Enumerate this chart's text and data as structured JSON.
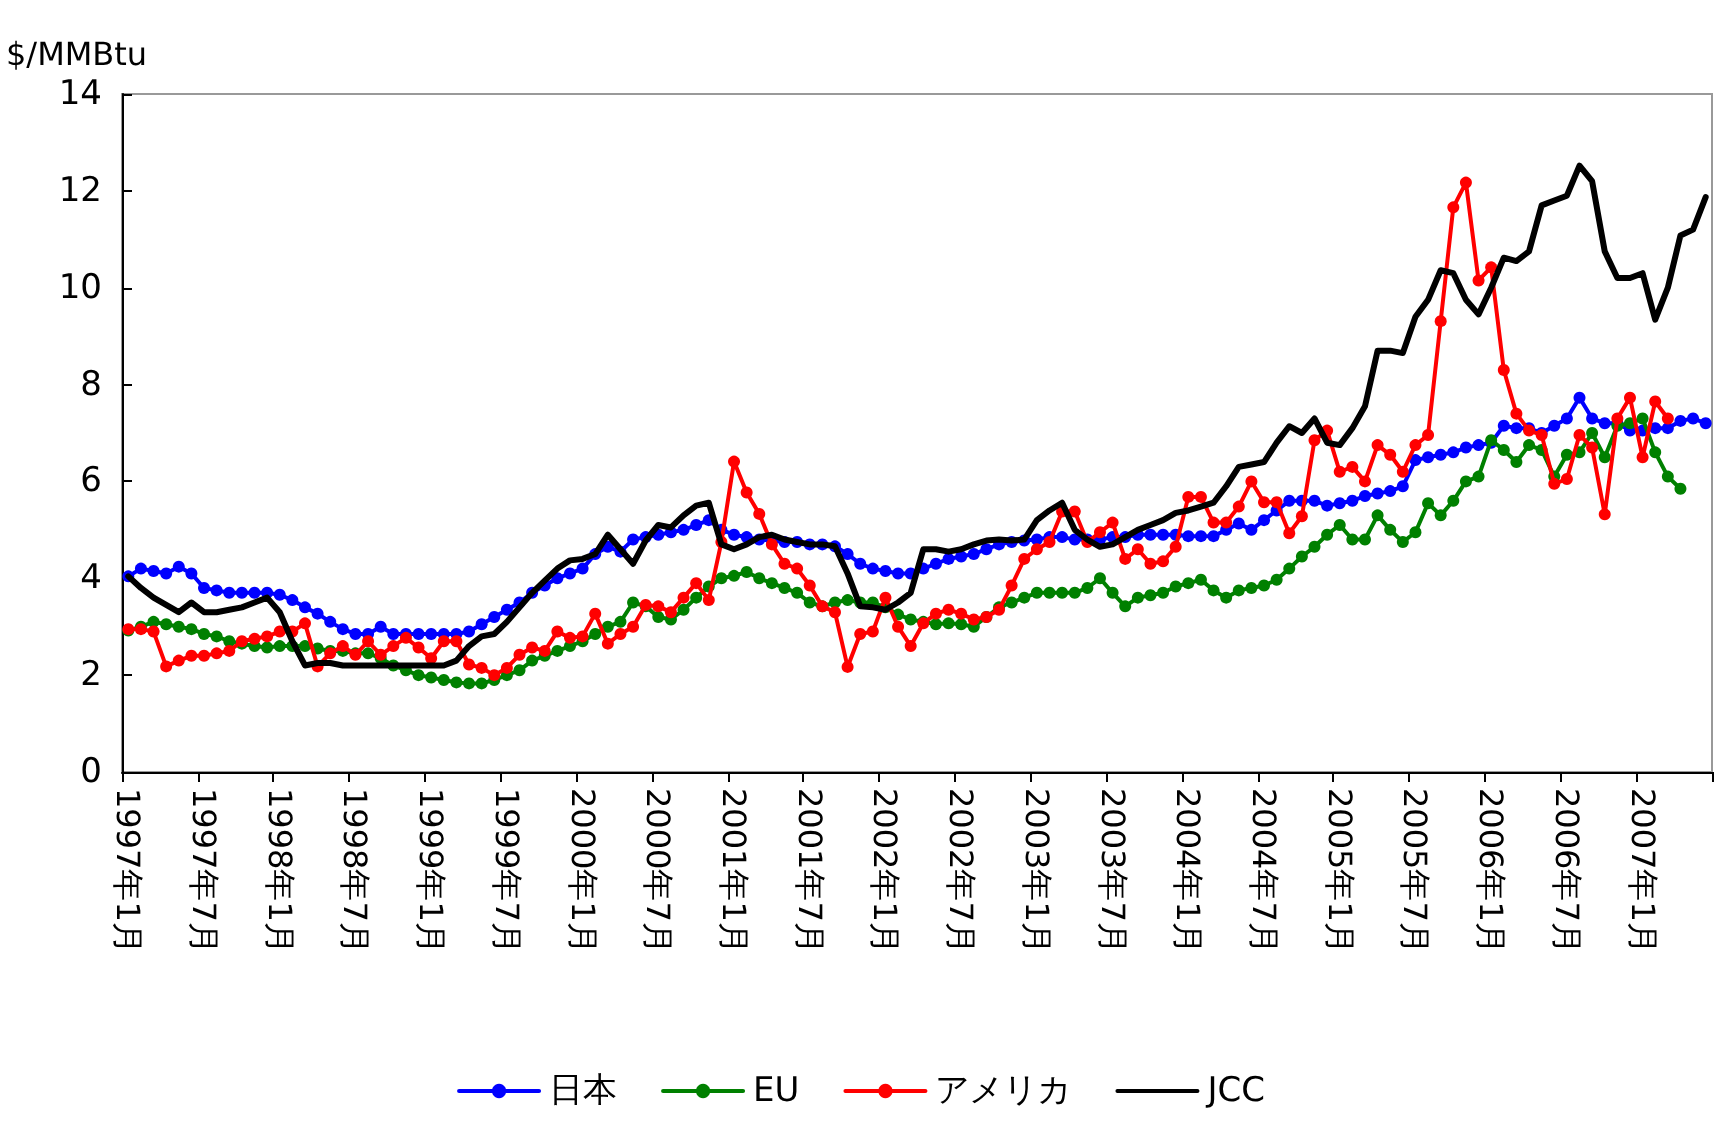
{
  "chart_data": {
    "type": "line",
    "ylabel": "$/MMBtu",
    "ylim": [
      0,
      14
    ],
    "yticks": [
      0,
      2,
      4,
      6,
      8,
      10,
      12,
      14
    ],
    "legend": "bottom",
    "categories": [
      "1997年1月",
      null,
      null,
      null,
      null,
      null,
      "1997年7月",
      null,
      null,
      null,
      null,
      null,
      "1998年1月",
      null,
      null,
      null,
      null,
      null,
      "1998年7月",
      null,
      null,
      null,
      null,
      null,
      "1999年1月",
      null,
      null,
      null,
      null,
      null,
      "1999年7月",
      null,
      null,
      null,
      null,
      null,
      "2000年1月",
      null,
      null,
      null,
      null,
      null,
      "2000年7月",
      null,
      null,
      null,
      null,
      null,
      "2001年1月",
      null,
      null,
      null,
      null,
      null,
      "2001年7月",
      null,
      null,
      null,
      null,
      null,
      "2002年1月",
      null,
      null,
      null,
      null,
      null,
      "2002年7月",
      null,
      null,
      null,
      null,
      null,
      "2003年1月",
      null,
      null,
      null,
      null,
      null,
      "2003年7月",
      null,
      null,
      null,
      null,
      null,
      "2004年1月",
      null,
      null,
      null,
      null,
      null,
      "2004年7月",
      null,
      null,
      null,
      null,
      null,
      "2005年1月",
      null,
      null,
      null,
      null,
      null,
      "2005年7月",
      null,
      null,
      null,
      null,
      null,
      "2006年1月",
      null,
      null,
      null,
      null,
      null,
      "2006年7月",
      null,
      null,
      null,
      null,
      null,
      "2007年1月",
      null,
      null,
      null,
      null,
      null
    ],
    "series": [
      {
        "name": "日本",
        "color": "#0000ff",
        "marker": "circle",
        "values": [
          4.04,
          4.2,
          4.15,
          4.1,
          4.24,
          4.1,
          3.8,
          3.75,
          3.7,
          3.7,
          3.7,
          3.7,
          3.66,
          3.55,
          3.4,
          3.27,
          3.1,
          2.95,
          2.85,
          2.85,
          3.0,
          2.85,
          2.85,
          2.85,
          2.85,
          2.85,
          2.85,
          2.9,
          3.05,
          3.2,
          3.35,
          3.5,
          3.7,
          3.85,
          4.0,
          4.1,
          4.2,
          4.5,
          4.65,
          4.55,
          4.8,
          4.85,
          4.9,
          4.95,
          5.0,
          5.1,
          5.2,
          5.0,
          4.9,
          4.85,
          4.8,
          4.78,
          4.75,
          4.75,
          4.7,
          4.7,
          4.66,
          4.5,
          4.3,
          4.2,
          4.15,
          4.1,
          4.1,
          4.2,
          4.3,
          4.4,
          4.45,
          4.5,
          4.6,
          4.7,
          4.75,
          4.78,
          4.8,
          4.85,
          4.85,
          4.8,
          4.8,
          4.8,
          4.85,
          4.85,
          4.9,
          4.9,
          4.9,
          4.9,
          4.87,
          4.87,
          4.87,
          5.0,
          5.13,
          5.0,
          5.2,
          5.4,
          5.6,
          5.6,
          5.6,
          5.5,
          5.55,
          5.6,
          5.7,
          5.75,
          5.8,
          5.9,
          6.44,
          6.5,
          6.55,
          6.6,
          6.7,
          6.75,
          6.8,
          7.15,
          7.1,
          7.1,
          7.0,
          7.15,
          7.3,
          7.73,
          7.3,
          7.2,
          7.2,
          7.05,
          7.05,
          7.1,
          7.1,
          7.25,
          7.3,
          7.2
        ]
      },
      {
        "name": "EU",
        "color": "#008000",
        "marker": "circle",
        "values": [
          2.92,
          3.0,
          3.1,
          3.05,
          3.0,
          2.95,
          2.85,
          2.8,
          2.7,
          2.65,
          2.6,
          2.57,
          2.6,
          2.6,
          2.6,
          2.55,
          2.5,
          2.5,
          2.45,
          2.45,
          2.35,
          2.2,
          2.1,
          2.0,
          1.95,
          1.9,
          1.85,
          1.83,
          1.83,
          1.9,
          2.0,
          2.1,
          2.3,
          2.4,
          2.5,
          2.6,
          2.7,
          2.85,
          3.0,
          3.1,
          3.5,
          3.42,
          3.2,
          3.15,
          3.35,
          3.6,
          3.83,
          4.0,
          4.05,
          4.13,
          4.0,
          3.9,
          3.8,
          3.7,
          3.5,
          3.42,
          3.5,
          3.55,
          3.5,
          3.5,
          3.4,
          3.25,
          3.15,
          3.1,
          3.05,
          3.07,
          3.05,
          3.0,
          3.2,
          3.4,
          3.5,
          3.6,
          3.7,
          3.7,
          3.7,
          3.7,
          3.8,
          4.0,
          3.7,
          3.42,
          3.6,
          3.65,
          3.7,
          3.83,
          3.9,
          3.97,
          3.75,
          3.6,
          3.75,
          3.8,
          3.85,
          3.97,
          4.2,
          4.45,
          4.65,
          4.9,
          5.1,
          4.8,
          4.8,
          5.3,
          5.0,
          4.75,
          4.95,
          5.55,
          5.3,
          5.6,
          6.0,
          6.1,
          6.85,
          6.65,
          6.4,
          6.75,
          6.65,
          6.1,
          6.55,
          6.6,
          7.0,
          6.5,
          7.15,
          7.2,
          7.3,
          6.6,
          6.1,
          5.85,
          null,
          null
        ]
      },
      {
        "name": "アメリカ",
        "color": "#ff0000",
        "marker": "circle",
        "values": [
          2.95,
          2.95,
          2.9,
          2.18,
          2.3,
          2.4,
          2.4,
          2.45,
          2.5,
          2.7,
          2.75,
          2.8,
          2.9,
          2.9,
          3.07,
          2.18,
          2.45,
          2.6,
          2.42,
          2.7,
          2.42,
          2.6,
          2.77,
          2.57,
          2.35,
          2.7,
          2.7,
          2.22,
          2.15,
          2.0,
          2.15,
          2.42,
          2.57,
          2.5,
          2.9,
          2.77,
          2.8,
          3.27,
          2.65,
          2.85,
          3.0,
          3.45,
          3.42,
          3.3,
          3.6,
          3.9,
          3.55,
          4.75,
          6.41,
          5.77,
          5.33,
          4.7,
          4.3,
          4.2,
          3.85,
          3.42,
          3.3,
          2.17,
          2.85,
          2.9,
          3.6,
          3.0,
          2.6,
          3.07,
          3.27,
          3.35,
          3.27,
          3.15,
          3.2,
          3.35,
          3.85,
          4.4,
          4.6,
          4.75,
          5.38,
          5.38,
          4.75,
          4.95,
          5.15,
          4.4,
          4.6,
          4.3,
          4.35,
          4.65,
          5.68,
          5.68,
          5.15,
          5.15,
          5.48,
          6.0,
          5.57,
          5.57,
          4.93,
          5.28,
          6.85,
          7.05,
          6.2,
          6.3,
          6.0,
          6.75,
          6.55,
          6.2,
          6.75,
          6.96,
          9.31,
          11.66,
          12.17,
          10.15,
          10.42,
          8.3,
          7.4,
          7.05,
          6.96,
          5.95,
          6.05,
          6.96,
          6.7,
          5.32,
          7.3,
          7.73,
          6.5,
          7.65,
          7.3,
          null,
          null,
          null
        ]
      },
      {
        "name": "JCC",
        "color": "#000000",
        "marker": "none",
        "values": [
          4.04,
          3.8,
          3.6,
          3.45,
          3.3,
          3.5,
          3.3,
          3.3,
          3.35,
          3.4,
          3.5,
          3.6,
          3.3,
          2.7,
          2.2,
          2.25,
          2.25,
          2.2,
          2.2,
          2.2,
          2.2,
          2.2,
          2.2,
          2.2,
          2.2,
          2.2,
          2.3,
          2.6,
          2.8,
          2.85,
          3.1,
          3.4,
          3.7,
          3.95,
          4.2,
          4.37,
          4.4,
          4.5,
          4.9,
          4.6,
          4.3,
          4.78,
          5.1,
          5.05,
          5.3,
          5.5,
          5.56,
          4.7,
          4.6,
          4.7,
          4.85,
          4.9,
          4.8,
          4.75,
          4.7,
          4.7,
          4.66,
          4.1,
          3.42,
          3.4,
          3.35,
          3.5,
          3.7,
          4.6,
          4.6,
          4.55,
          4.6,
          4.7,
          4.78,
          4.8,
          4.78,
          4.8,
          5.2,
          5.4,
          5.56,
          5.0,
          4.8,
          4.65,
          4.7,
          4.85,
          5.0,
          5.1,
          5.2,
          5.35,
          5.4,
          5.48,
          5.56,
          5.9,
          6.3,
          6.35,
          6.4,
          6.8,
          7.14,
          7.0,
          7.3,
          6.8,
          6.75,
          7.1,
          7.55,
          8.7,
          8.7,
          8.65,
          9.4,
          9.75,
          10.36,
          10.3,
          9.75,
          9.45,
          10.0,
          10.62,
          10.55,
          10.75,
          11.7,
          11.8,
          11.9,
          12.52,
          12.2,
          10.75,
          10.2,
          10.2,
          10.3,
          9.34,
          10.0,
          11.08,
          11.2,
          11.87
        ]
      }
    ]
  }
}
